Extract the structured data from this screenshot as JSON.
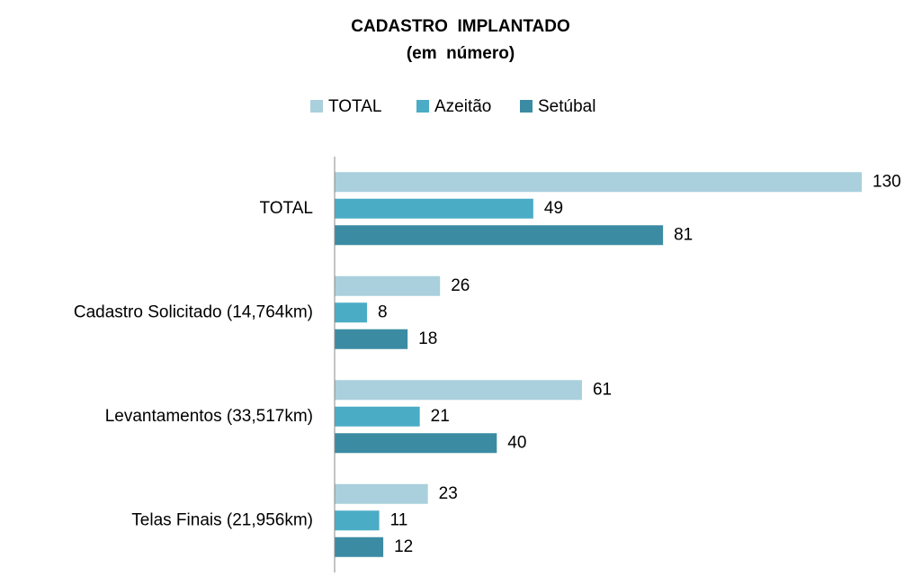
{
  "chart_data": {
    "type": "hbar",
    "title": "CADASTRO  IMPLANTADO",
    "subtitle": "(em  número)",
    "categories": [
      "TOTAL",
      "Cadastro Solicitado (14,764km)",
      "Levantamentos (33,517km)",
      "Telas Finais (21,956km)"
    ],
    "series": [
      {
        "name": "TOTAL",
        "color": "#a9d0dc",
        "values": [
          130,
          26,
          61,
          23
        ]
      },
      {
        "name": "Azeitão",
        "color": "#4bacc6",
        "values": [
          49,
          8,
          21,
          11
        ]
      },
      {
        "name": "Setúbal",
        "color": "#3b8ca3",
        "values": [
          81,
          18,
          40,
          12
        ]
      }
    ],
    "xlim": [
      0,
      130
    ],
    "legend": "top",
    "grid": false
  }
}
